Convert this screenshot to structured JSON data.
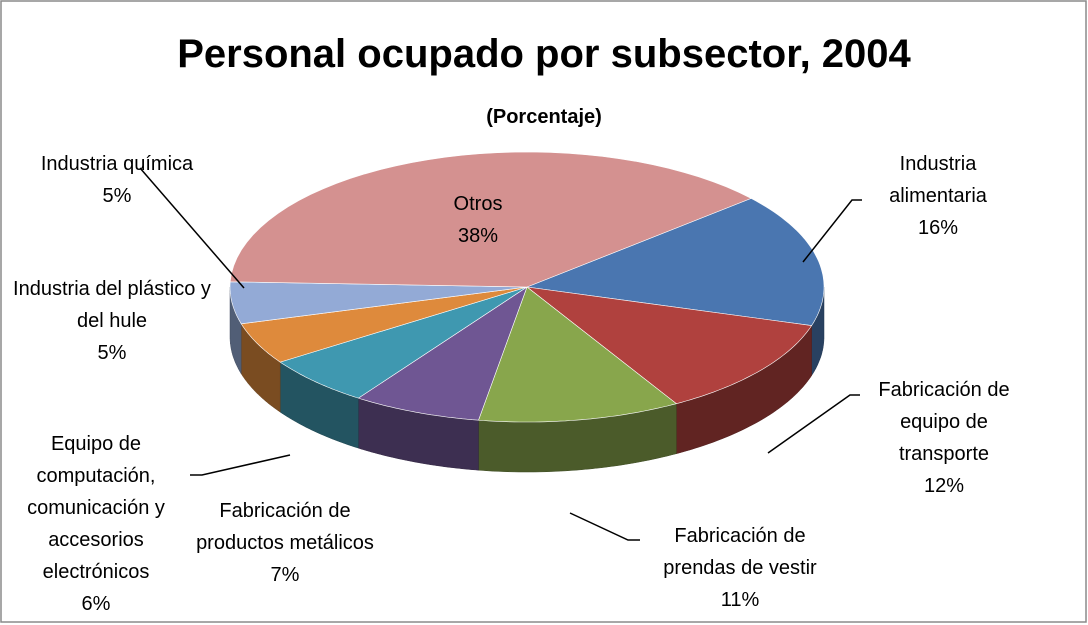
{
  "chart_data": {
    "type": "pie3d",
    "title": "Personal ocupado por subsector, 2004",
    "subtitle": "(Porcentaje)",
    "categories": [
      "Industria alimentaria",
      "Fabricación de equipo de transporte",
      "Fabricación de prendas de vestir",
      "Fabricación de productos metálicos",
      "Equipo de computación, comunicación y accesorios electrónicos",
      "Industria del plástico y del hule",
      "Industria química",
      "Otros"
    ],
    "values": [
      16,
      12,
      11,
      7,
      6,
      5,
      5,
      38
    ],
    "value_labels": [
      "16%",
      "12%",
      "11%",
      "7%",
      "6%",
      "5%",
      "5%",
      "38%"
    ],
    "colors": [
      "#4a76b0",
      "#b0413e",
      "#88a64c",
      "#6f5693",
      "#3f98b0",
      "#de8a3c",
      "#93aad6",
      "#d49190"
    ]
  }
}
